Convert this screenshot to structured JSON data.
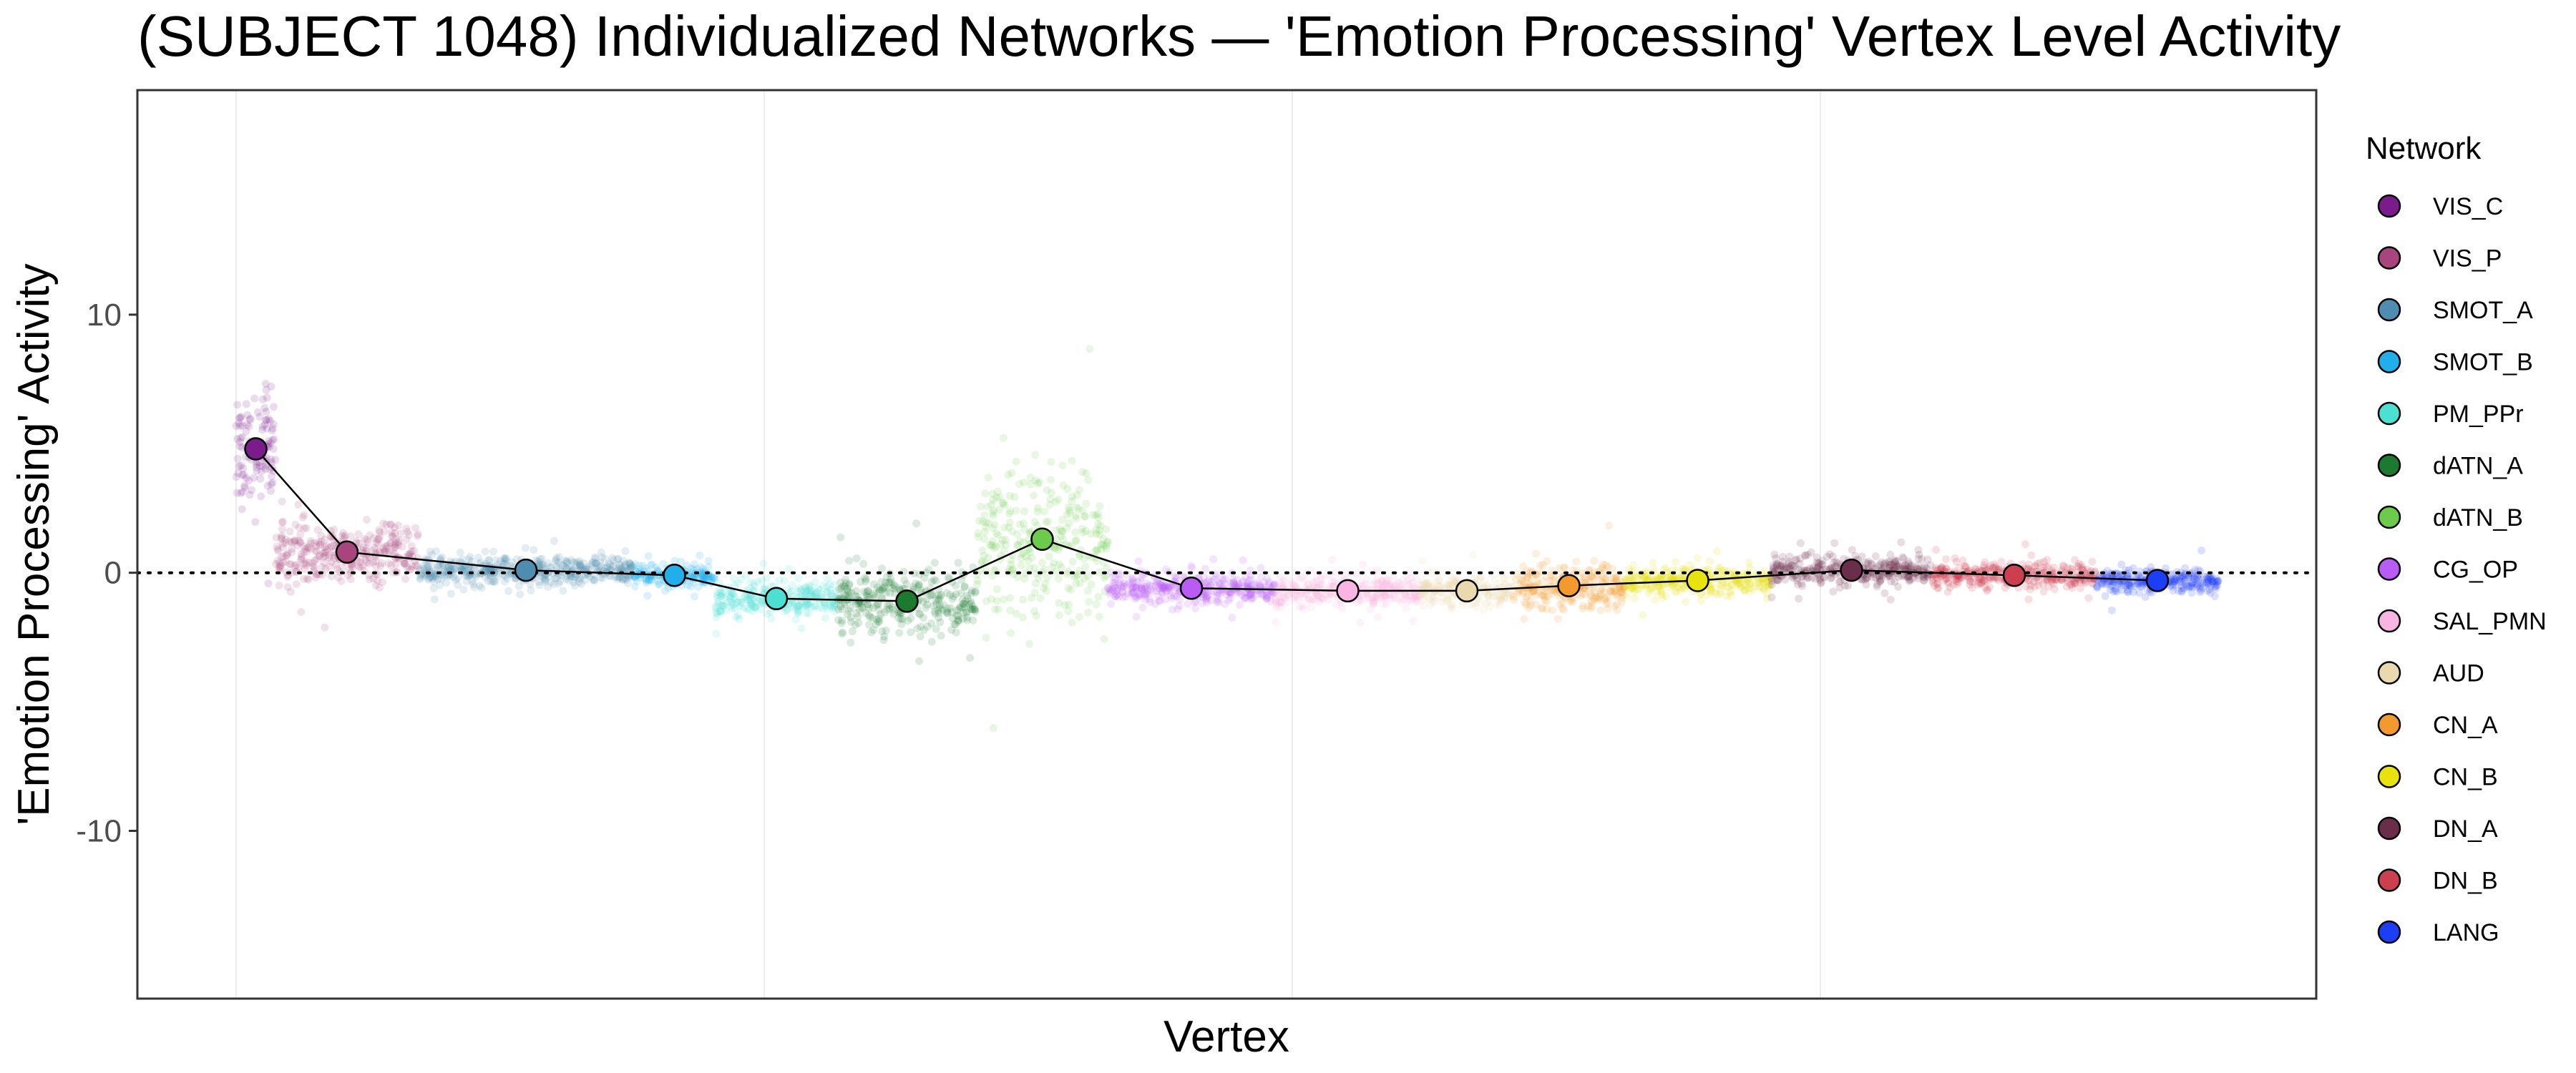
{
  "chart_data": {
    "type": "scatter",
    "title": "(SUBJECT 1048) Individualized Networks — 'Emotion Processing' Vertex Level Activity",
    "xlabel": "Vertex",
    "ylabel": "'Emotion Processing' Activity",
    "ylim": [
      -16.5,
      18.7
    ],
    "y_ticks": [
      -10,
      0,
      10
    ],
    "y_tick_labels": [
      "-10",
      "0",
      "10"
    ],
    "reference_line": 0,
    "grid": true,
    "legend_title": "Network",
    "legend_position": "right",
    "series": [
      {
        "name": "VIS_C",
        "color": "#7A1C8C",
        "mean": 4.8,
        "spread": 2.6
      },
      {
        "name": "VIS_P",
        "color": "#A8457E",
        "mean": 0.8,
        "spread": 1.4
      },
      {
        "name": "SMOT_A",
        "color": "#4F8DB0",
        "mean": 0.1,
        "spread": 0.7
      },
      {
        "name": "SMOT_B",
        "color": "#22AEEA",
        "mean": -0.1,
        "spread": 0.5
      },
      {
        "name": "PM_PPr",
        "color": "#4CE0D2",
        "mean": -1.0,
        "spread": 0.9
      },
      {
        "name": "dATN_A",
        "color": "#1B7A2F",
        "mean": -1.1,
        "spread": 1.5
      },
      {
        "name": "dATN_B",
        "color": "#6CCB4A",
        "mean": 1.3,
        "spread": 3.8
      },
      {
        "name": "CG_OP",
        "color": "#B85CF5",
        "mean": -0.6,
        "spread": 0.7
      },
      {
        "name": "SAL_PMN",
        "color": "#F8B4E3",
        "mean": -0.7,
        "spread": 0.8
      },
      {
        "name": "AUD",
        "color": "#EAD8AE",
        "mean": -0.7,
        "spread": 0.7
      },
      {
        "name": "CN_A",
        "color": "#F39A2E",
        "mean": -0.5,
        "spread": 1.2
      },
      {
        "name": "CN_B",
        "color": "#E8E20E",
        "mean": -0.3,
        "spread": 0.7
      },
      {
        "name": "DN_A",
        "color": "#6A2E4A",
        "mean": 0.1,
        "spread": 0.7
      },
      {
        "name": "DN_B",
        "color": "#CC3F4E",
        "mean": -0.1,
        "spread": 0.6
      },
      {
        "name": "LANG",
        "color": "#1C3FF5",
        "mean": -0.3,
        "spread": 0.6
      }
    ]
  }
}
